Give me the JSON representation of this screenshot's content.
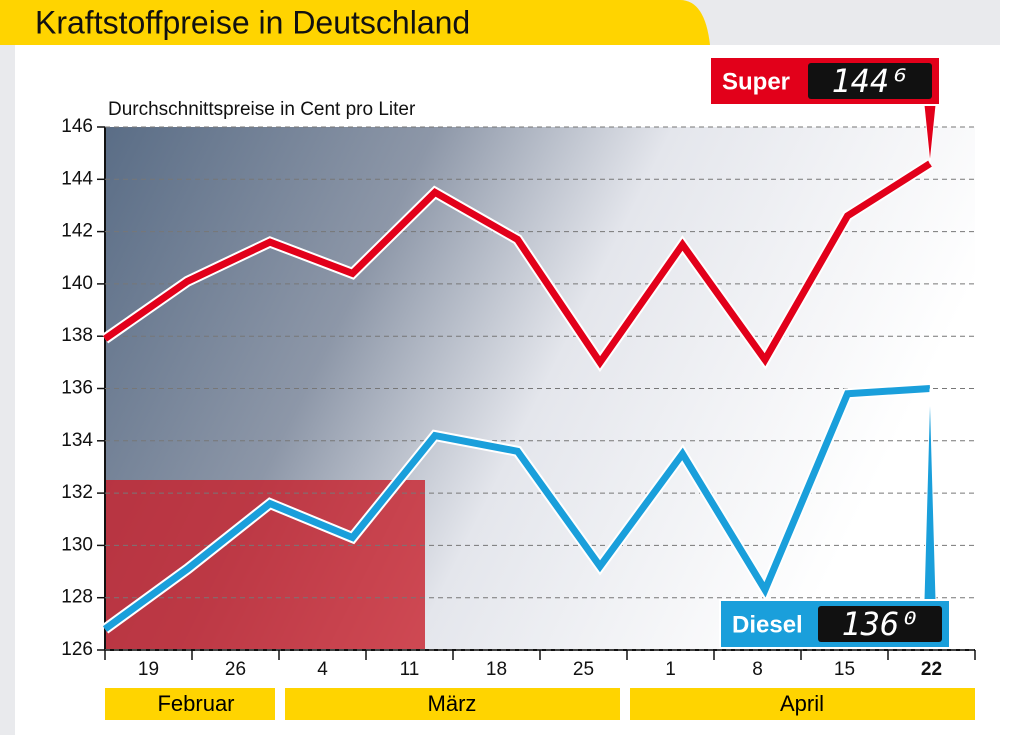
{
  "chart_data": {
    "type": "line",
    "title": "Kraftstoffpreise in Deutschland",
    "subtitle": "Durchschnittspreise in Cent pro Liter",
    "categories": [
      null,
      "19",
      "26",
      "4",
      "11",
      "18",
      "25",
      "1",
      "8",
      "15",
      "22"
    ],
    "months": [
      "Februar",
      "März",
      "April"
    ],
    "series": [
      {
        "name": "Super",
        "color": "#e2001a",
        "values": [
          137.9,
          140.1,
          141.6,
          140.4,
          143.5,
          141.7,
          137.0,
          141.5,
          137.1,
          142.6,
          144.6
        ],
        "value_labels": [
          null,
          null,
          null,
          null,
          null,
          null,
          null,
          null,
          null,
          null,
          "144⁶"
        ]
      },
      {
        "name": "Diesel",
        "color": "#1a9fdb",
        "values": [
          126.8,
          129.1,
          131.6,
          130.3,
          134.2,
          133.6,
          129.2,
          133.5,
          128.3,
          135.8,
          136.0
        ],
        "value_labels": [
          null,
          null,
          null,
          null,
          null,
          null,
          null,
          null,
          null,
          null,
          "136⁰"
        ]
      }
    ],
    "ylim": [
      126,
      146
    ],
    "yticks": [
      126,
      128,
      130,
      132,
      134,
      136,
      138,
      140,
      142,
      144,
      146
    ],
    "grid": true
  }
}
